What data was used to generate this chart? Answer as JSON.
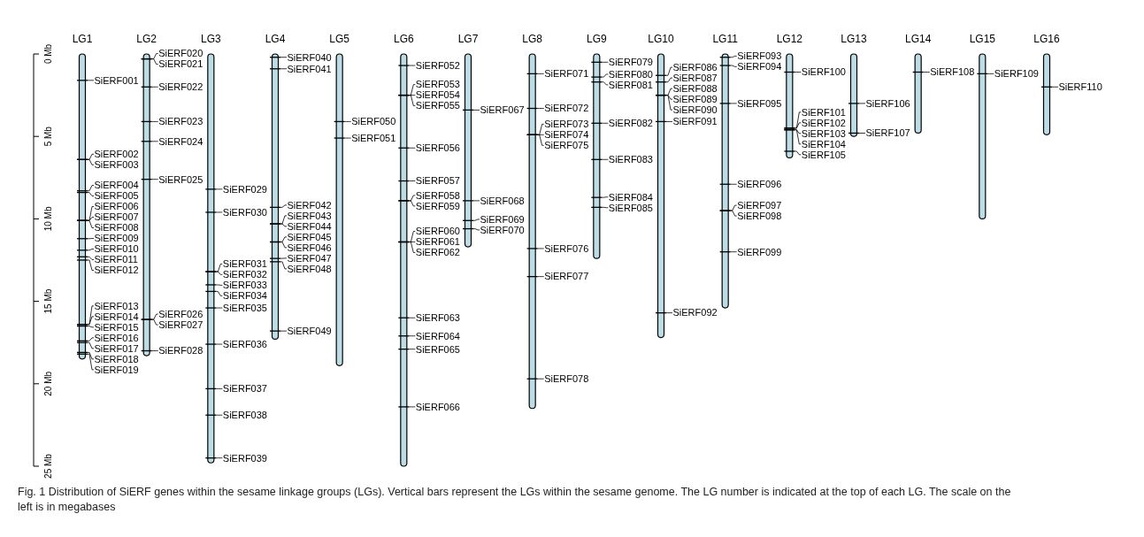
{
  "chart_data": {
    "type": "bar",
    "categories": [
      "LG1",
      "LG2",
      "LG3",
      "LG4",
      "LG5",
      "LG6",
      "LG7",
      "LG8",
      "LG9",
      "LG10",
      "LG11",
      "LG12",
      "LG13",
      "LG14",
      "LG15",
      "LG16"
    ],
    "values": [
      18.5,
      18.3,
      24.8,
      17.3,
      18.9,
      25.0,
      11.7,
      21.5,
      12.4,
      17.2,
      15.4,
      6.3,
      5.0,
      4.8,
      10.0,
      4.9
    ],
    "color": "#bcdde6",
    "ylim": [
      25,
      0
    ],
    "yticks": [
      {
        "value": 0,
        "label": "0 Mb"
      },
      {
        "value": 5,
        "label": "5 Mb"
      },
      {
        "value": 10,
        "label": "10 Mb"
      },
      {
        "value": 15,
        "label": "15 Mb"
      },
      {
        "value": 20,
        "label": "20 Mb"
      },
      {
        "value": 25,
        "label": "25 Mb"
      }
    ],
    "annotations": [
      {
        "text": "SiERF001",
        "x": "LG1",
        "y": 1.6
      },
      {
        "text": "SiERF002",
        "x": "LG1",
        "y": 6.4
      },
      {
        "text": "SiERF003",
        "x": "LG1",
        "y": 6.4
      },
      {
        "text": "SiERF004",
        "x": "LG1",
        "y": 8.3
      },
      {
        "text": "SiERF005",
        "x": "LG1",
        "y": 8.4
      },
      {
        "text": "SiERF006",
        "x": "LG1",
        "y": 10.1
      },
      {
        "text": "SiERF007",
        "x": "LG1",
        "y": 10.1
      },
      {
        "text": "SiERF008",
        "x": "LG1",
        "y": 10.1
      },
      {
        "text": "SiERF009",
        "x": "LG1",
        "y": 11.2
      },
      {
        "text": "SiERF010",
        "x": "LG1",
        "y": 11.9
      },
      {
        "text": "SiERF011",
        "x": "LG1",
        "y": 12.3
      },
      {
        "text": "SiERF012",
        "x": "LG1",
        "y": 12.5
      },
      {
        "text": "SiERF013",
        "x": "LG1",
        "y": 16.4
      },
      {
        "text": "SiERF014",
        "x": "LG1",
        "y": 16.4
      },
      {
        "text": "SiERF015",
        "x": "LG1",
        "y": 16.5
      },
      {
        "text": "SiERF016",
        "x": "LG1",
        "y": 17.4
      },
      {
        "text": "SiERF017",
        "x": "LG1",
        "y": 17.5
      },
      {
        "text": "SiERF018",
        "x": "LG1",
        "y": 18.1
      },
      {
        "text": "SiERF019",
        "x": "LG1",
        "y": 18.2
      },
      {
        "text": "SiERF020",
        "x": "LG2",
        "y": 0.3
      },
      {
        "text": "SiERF021",
        "x": "LG2",
        "y": 0.3
      },
      {
        "text": "SiERF022",
        "x": "LG2",
        "y": 2.0
      },
      {
        "text": "SiERF023",
        "x": "LG2",
        "y": 4.1
      },
      {
        "text": "SiERF024",
        "x": "LG2",
        "y": 5.3
      },
      {
        "text": "SiERF025",
        "x": "LG2",
        "y": 7.6
      },
      {
        "text": "SiERF026",
        "x": "LG2",
        "y": 16.1
      },
      {
        "text": "SiERF027",
        "x": "LG2",
        "y": 16.1
      },
      {
        "text": "SiERF028",
        "x": "LG2",
        "y": 18.0
      },
      {
        "text": "SiERF029",
        "x": "LG3",
        "y": 8.2
      },
      {
        "text": "SiERF030",
        "x": "LG3",
        "y": 9.6
      },
      {
        "text": "SiERF031",
        "x": "LG3",
        "y": 13.2
      },
      {
        "text": "SiERF032",
        "x": "LG3",
        "y": 13.2
      },
      {
        "text": "SiERF033",
        "x": "LG3",
        "y": 14.0
      },
      {
        "text": "SiERF034",
        "x": "LG3",
        "y": 14.4
      },
      {
        "text": "SiERF035",
        "x": "LG3",
        "y": 15.4
      },
      {
        "text": "SiERF036",
        "x": "LG3",
        "y": 17.6
      },
      {
        "text": "SiERF037",
        "x": "LG3",
        "y": 20.3
      },
      {
        "text": "SiERF038",
        "x": "LG3",
        "y": 21.9
      },
      {
        "text": "SiERF039",
        "x": "LG3",
        "y": 24.5
      },
      {
        "text": "SiERF040",
        "x": "LG4",
        "y": 0.2
      },
      {
        "text": "SiERF041",
        "x": "LG4",
        "y": 0.9
      },
      {
        "text": "SiERF042",
        "x": "LG4",
        "y": 9.3
      },
      {
        "text": "SiERF043",
        "x": "LG4",
        "y": 10.3
      },
      {
        "text": "SiERF044",
        "x": "LG4",
        "y": 10.3
      },
      {
        "text": "SiERF045",
        "x": "LG4",
        "y": 11.4
      },
      {
        "text": "SiERF046",
        "x": "LG4",
        "y": 11.4
      },
      {
        "text": "SiERF047",
        "x": "LG4",
        "y": 12.4
      },
      {
        "text": "SiERF048",
        "x": "LG4",
        "y": 12.6
      },
      {
        "text": "SiERF049",
        "x": "LG4",
        "y": 16.8
      },
      {
        "text": "SiERF050",
        "x": "LG5",
        "y": 4.1
      },
      {
        "text": "SiERF051",
        "x": "LG5",
        "y": 5.1
      },
      {
        "text": "SiERF052",
        "x": "LG6",
        "y": 0.7
      },
      {
        "text": "SiERF053",
        "x": "LG6",
        "y": 2.5
      },
      {
        "text": "SiERF054",
        "x": "LG6",
        "y": 2.5
      },
      {
        "text": "SiERF055",
        "x": "LG6",
        "y": 2.5
      },
      {
        "text": "SiERF056",
        "x": "LG6",
        "y": 5.7
      },
      {
        "text": "SiERF057",
        "x": "LG6",
        "y": 7.7
      },
      {
        "text": "SiERF058",
        "x": "LG6",
        "y": 8.9
      },
      {
        "text": "SiERF059",
        "x": "LG6",
        "y": 8.9
      },
      {
        "text": "SiERF060",
        "x": "LG6",
        "y": 11.4
      },
      {
        "text": "SiERF061",
        "x": "LG6",
        "y": 11.4
      },
      {
        "text": "SiERF062",
        "x": "LG6",
        "y": 11.4
      },
      {
        "text": "SiERF063",
        "x": "LG6",
        "y": 16.0
      },
      {
        "text": "SiERF064",
        "x": "LG6",
        "y": 17.1
      },
      {
        "text": "SiERF065",
        "x": "LG6",
        "y": 17.9
      },
      {
        "text": "SiERF066",
        "x": "LG6",
        "y": 21.4
      },
      {
        "text": "SiERF067",
        "x": "LG7",
        "y": 3.4
      },
      {
        "text": "SiERF068",
        "x": "LG7",
        "y": 8.9
      },
      {
        "text": "SiERF069",
        "x": "LG7",
        "y": 10.1
      },
      {
        "text": "SiERF070",
        "x": "LG7",
        "y": 10.6
      },
      {
        "text": "SiERF071",
        "x": "LG8",
        "y": 1.2
      },
      {
        "text": "SiERF072",
        "x": "LG8",
        "y": 3.3
      },
      {
        "text": "SiERF073",
        "x": "LG8",
        "y": 4.9
      },
      {
        "text": "SiERF074",
        "x": "LG8",
        "y": 4.9
      },
      {
        "text": "SiERF075",
        "x": "LG8",
        "y": 4.9
      },
      {
        "text": "SiERF076",
        "x": "LG8",
        "y": 11.8
      },
      {
        "text": "SiERF077",
        "x": "LG8",
        "y": 13.5
      },
      {
        "text": "SiERF078",
        "x": "LG8",
        "y": 19.7
      },
      {
        "text": "SiERF079",
        "x": "LG9",
        "y": 0.5
      },
      {
        "text": "SiERF080",
        "x": "LG9",
        "y": 1.4
      },
      {
        "text": "SiERF081",
        "x": "LG9",
        "y": 1.7
      },
      {
        "text": "SiERF082",
        "x": "LG9",
        "y": 4.2
      },
      {
        "text": "SiERF083",
        "x": "LG9",
        "y": 6.4
      },
      {
        "text": "SiERF084",
        "x": "LG9",
        "y": 8.7
      },
      {
        "text": "SiERF085",
        "x": "LG9",
        "y": 9.3
      },
      {
        "text": "SiERF086",
        "x": "LG10",
        "y": 1.3
      },
      {
        "text": "SiERF087",
        "x": "LG10",
        "y": 1.7
      },
      {
        "text": "SiERF088",
        "x": "LG10",
        "y": 2.5
      },
      {
        "text": "SiERF089",
        "x": "LG10",
        "y": 2.5
      },
      {
        "text": "SiERF090",
        "x": "LG10",
        "y": 2.5
      },
      {
        "text": "SiERF091",
        "x": "LG10",
        "y": 4.1
      },
      {
        "text": "SiERF092",
        "x": "LG10",
        "y": 15.7
      },
      {
        "text": "SiERF093",
        "x": "LG11",
        "y": 0.2
      },
      {
        "text": "SiERF094",
        "x": "LG11",
        "y": 0.7
      },
      {
        "text": "SiERF095",
        "x": "LG11",
        "y": 3.0
      },
      {
        "text": "SiERF096",
        "x": "LG11",
        "y": 7.9
      },
      {
        "text": "SiERF097",
        "x": "LG11",
        "y": 9.5
      },
      {
        "text": "SiERF098",
        "x": "LG11",
        "y": 9.5
      },
      {
        "text": "SiERF099",
        "x": "LG11",
        "y": 12.0
      },
      {
        "text": "SiERF100",
        "x": "LG12",
        "y": 1.1
      },
      {
        "text": "SiERF101",
        "x": "LG12",
        "y": 4.5
      },
      {
        "text": "SiERF102",
        "x": "LG12",
        "y": 4.5
      },
      {
        "text": "SiERF103",
        "x": "LG12",
        "y": 4.6
      },
      {
        "text": "SiERF104",
        "x": "LG12",
        "y": 4.6
      },
      {
        "text": "SiERF105",
        "x": "LG12",
        "y": 5.9
      },
      {
        "text": "SiERF106",
        "x": "LG13",
        "y": 3.0
      },
      {
        "text": "SiERF107",
        "x": "LG13",
        "y": 4.8
      },
      {
        "text": "SiERF108",
        "x": "LG14",
        "y": 1.1
      },
      {
        "text": "SiERF109",
        "x": "LG15",
        "y": 1.2
      },
      {
        "text": "SiERF110",
        "x": "LG16",
        "y": 2.0
      },
      "Fig. 1 Distribution of SiERF genes within the sesame linkage groups (LGs). Vertical bars represent the LGs within the sesame genome. The LG number is indicated at the top of each LG. The scale on the left is in megabases"
    ]
  }
}
